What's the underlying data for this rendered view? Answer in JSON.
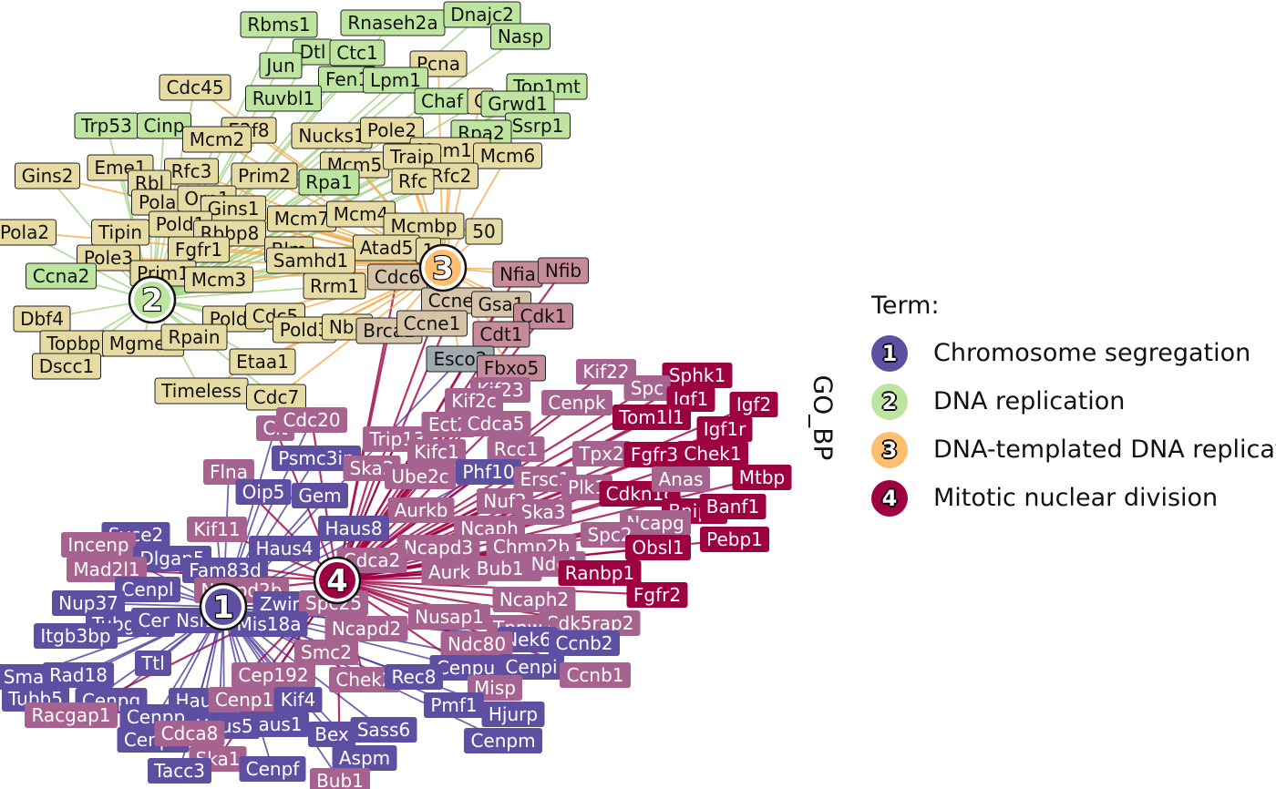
{
  "axis_title": "GO_BP",
  "legend": {
    "title": "Term:",
    "items": [
      {
        "num": "1",
        "label": "Chromosome segregation",
        "color": "#5E4FA2"
      },
      {
        "num": "2",
        "label": "DNA replication",
        "color": "#BEE5A0"
      },
      {
        "num": "3",
        "label": "DNA-templated DNA replication",
        "color": "#FDBF6F"
      },
      {
        "num": "4",
        "label": "Mitotic nuclear division",
        "color": "#9E0142"
      }
    ]
  },
  "colors": {
    "term1": "#5E4FA2",
    "term2": "#BEE5A0",
    "term3": "#FDBF6F",
    "term4": "#9E0142",
    "tan": "#E6DCA3",
    "green_gene": "#BEE5A0",
    "mix_grey": "#A0A8B0",
    "mauve": "#A6638F",
    "rose": "#C68B99",
    "edge_purple": "#4B3B9A",
    "edge_red": "#9E0142",
    "edge_green": "#A8D58A",
    "edge_orange": "#F8A94C"
  },
  "terms": [
    {
      "num": "1",
      "color": "#5E4FA2"
    },
    {
      "num": "2",
      "color": "#BEE5A0"
    },
    {
      "num": "3",
      "color": "#FDBF6F"
    },
    {
      "num": "4",
      "color": "#9E0142"
    }
  ],
  "genes": [
    {
      "label": "Rbms1",
      "fill": "#BEE5A0"
    },
    {
      "label": "Rnaseh2a",
      "fill": "#BEE5A0"
    },
    {
      "label": "Dnajc2",
      "fill": "#BEE5A0"
    },
    {
      "label": "Nasp",
      "fill": "#BEE5A0"
    },
    {
      "label": "Dtl",
      "fill": "#BEE5A0"
    },
    {
      "label": "Ctc1",
      "fill": "#BEE5A0"
    },
    {
      "label": "Jun",
      "fill": "#BEE5A0"
    },
    {
      "label": "Pcna",
      "fill": "#E6DCA3"
    },
    {
      "label": "Cdc45",
      "fill": "#E6DCA3"
    },
    {
      "label": "Fen1",
      "fill": "#BEE5A0"
    },
    {
      "label": "Lpm1",
      "fill": "#BEE5A0"
    },
    {
      "label": "Ruvbl1",
      "fill": "#BEE5A0"
    },
    {
      "label": "Top1mt",
      "fill": "#BEE5A0"
    },
    {
      "label": "Chaf",
      "fill": "#BEE5A0"
    },
    {
      "label": "C",
      "fill": "#E6DCA3"
    },
    {
      "label": "Grwd1",
      "fill": "#BEE5A0"
    },
    {
      "label": "Trp53",
      "fill": "#BEE5A0"
    },
    {
      "label": "Cinp",
      "fill": "#BEE5A0"
    },
    {
      "label": "E2f8",
      "fill": "#E6DCA3"
    },
    {
      "label": "Ssrp1",
      "fill": "#BEE5A0"
    },
    {
      "label": "Mcm2",
      "fill": "#E6DCA3"
    },
    {
      "label": "Nucks1",
      "fill": "#E6DCA3"
    },
    {
      "label": "Pole2",
      "fill": "#E6DCA3"
    },
    {
      "label": "Rpa2",
      "fill": "#BEE5A0"
    },
    {
      "label": "Mcm10",
      "fill": "#E6DCA3"
    },
    {
      "label": "Mcm6",
      "fill": "#E6DCA3"
    },
    {
      "label": "Gins2",
      "fill": "#E6DCA3"
    },
    {
      "label": "Eme1",
      "fill": "#E6DCA3"
    },
    {
      "label": "Rfc3",
      "fill": "#E6DCA3"
    },
    {
      "label": "Prim2",
      "fill": "#E6DCA3"
    },
    {
      "label": "Mcm5",
      "fill": "#E6DCA3"
    },
    {
      "label": "Traip",
      "fill": "#E6DCA3"
    },
    {
      "label": "Rfc2",
      "fill": "#E6DCA3"
    },
    {
      "label": "Rfc",
      "fill": "#E6DCA3"
    },
    {
      "label": "Rpa1",
      "fill": "#BEE5A0"
    },
    {
      "label": "Rbl",
      "fill": "#E6DCA3"
    },
    {
      "label": "Pola1",
      "fill": "#E6DCA3"
    },
    {
      "label": "Orp1",
      "fill": "#E6DCA3"
    },
    {
      "label": "Gins1",
      "fill": "#E6DCA3"
    },
    {
      "label": "Mcm7",
      "fill": "#E6DCA3"
    },
    {
      "label": "Mcm4",
      "fill": "#E6DCA3"
    },
    {
      "label": "Mcmbp",
      "fill": "#E6DCA3"
    },
    {
      "label": "Pola2",
      "fill": "#E6DCA3"
    },
    {
      "label": "Tipin",
      "fill": "#E6DCA3"
    },
    {
      "label": "Pold1",
      "fill": "#E6DCA3"
    },
    {
      "label": "Rbbp8",
      "fill": "#E6DCA3"
    },
    {
      "label": "50",
      "fill": "#E6DCA3"
    },
    {
      "label": "Pole3",
      "fill": "#E6DCA3"
    },
    {
      "label": "Fgfr1",
      "fill": "#E6DCA3"
    },
    {
      "label": "Blm",
      "fill": "#E6DCA3"
    },
    {
      "label": "Atad5",
      "fill": "#E6DCA3"
    },
    {
      "label": "1",
      "fill": "#E6DCA3"
    },
    {
      "label": "Ccna2",
      "fill": "#BEE5A0"
    },
    {
      "label": "Prim1",
      "fill": "#E6DCA3"
    },
    {
      "label": "Mcm3",
      "fill": "#E6DCA3"
    },
    {
      "label": "Samhd1",
      "fill": "#E6DCA3"
    },
    {
      "label": "Cdc6",
      "fill": "#D5C4A8"
    },
    {
      "label": "Nfia",
      "fill": "#C68B99"
    },
    {
      "label": "Nfib",
      "fill": "#C68B99"
    },
    {
      "label": "Rrm1",
      "fill": "#E6DCA3"
    },
    {
      "label": "Ccne2",
      "fill": "#D5C4A8"
    },
    {
      "label": "Gsa1",
      "fill": "#D5C4A8"
    },
    {
      "label": "Dbf4",
      "fill": "#E6DCA3"
    },
    {
      "label": "Pold2",
      "fill": "#E6DCA3"
    },
    {
      "label": "Cdc5",
      "fill": "#E6DCA3"
    },
    {
      "label": "Pold3",
      "fill": "#E6DCA3"
    },
    {
      "label": "Nbn",
      "fill": "#E6DCA3"
    },
    {
      "label": "Brca2",
      "fill": "#D5C4A8"
    },
    {
      "label": "Ccne1",
      "fill": "#D5C4A8"
    },
    {
      "label": "Cdk1",
      "fill": "#C68B99"
    },
    {
      "label": "Topbp1",
      "fill": "#E6DCA3"
    },
    {
      "label": "Mgme1",
      "fill": "#E6DCA3"
    },
    {
      "label": "Rpain",
      "fill": "#E6DCA3"
    },
    {
      "label": "Cdt1",
      "fill": "#C68B99"
    },
    {
      "label": "Dscc1",
      "fill": "#E6DCA3"
    },
    {
      "label": "Etaa1",
      "fill": "#E6DCA3"
    },
    {
      "label": "Esco2",
      "fill": "#A0A8B0"
    },
    {
      "label": "Fbxo5",
      "fill": "#C68B99"
    },
    {
      "label": "Timeless",
      "fill": "#E6DCA3"
    },
    {
      "label": "Cdc7",
      "fill": "#E6DCA3"
    },
    {
      "label": "Kif22",
      "fill": "#A6638F"
    },
    {
      "label": "Sphk1",
      "fill": "#9E0142"
    },
    {
      "label": "Kif23",
      "fill": "#A6638F"
    },
    {
      "label": "Spc",
      "fill": "#A6638F"
    },
    {
      "label": "Igf1",
      "fill": "#9E0142"
    },
    {
      "label": "Igf2",
      "fill": "#9E0142"
    },
    {
      "label": "Kif2c",
      "fill": "#A6638F"
    },
    {
      "label": "Cenpk",
      "fill": "#A6638F"
    },
    {
      "label": "Tom1l1",
      "fill": "#9E0142"
    },
    {
      "label": "Igf1r",
      "fill": "#9E0142"
    },
    {
      "label": "Cit",
      "fill": "#A6638F"
    },
    {
      "label": "Cdc20",
      "fill": "#A6638F"
    },
    {
      "label": "Trip13",
      "fill": "#A6638F"
    },
    {
      "label": "Ect2",
      "fill": "#A6638F"
    },
    {
      "label": "Cdca5",
      "fill": "#A6638F"
    },
    {
      "label": "Chek1",
      "fill": "#9E0142"
    },
    {
      "label": "Psmc3ip",
      "fill": "#5E4FA2"
    },
    {
      "label": "Kifc1",
      "fill": "#A6638F"
    },
    {
      "label": "Rcc1",
      "fill": "#A6638F"
    },
    {
      "label": "Tpx2",
      "fill": "#A6638F"
    },
    {
      "label": "Fgfr3",
      "fill": "#9E0142"
    },
    {
      "label": "Mtbp",
      "fill": "#9E0142"
    },
    {
      "label": "Flna",
      "fill": "#A6638F"
    },
    {
      "label": "Ska2",
      "fill": "#A6638F"
    },
    {
      "label": "Ube2c",
      "fill": "#A6638F"
    },
    {
      "label": "Phf10",
      "fill": "#5E4FA2"
    },
    {
      "label": "Ersc1",
      "fill": "#A6638F"
    },
    {
      "label": "Plk1",
      "fill": "#A6638F"
    },
    {
      "label": "Cdkn1c",
      "fill": "#9E0142"
    },
    {
      "label": "Anas",
      "fill": "#A6638F"
    },
    {
      "label": "Oip5",
      "fill": "#5E4FA2"
    },
    {
      "label": "Gem",
      "fill": "#5E4FA2"
    },
    {
      "label": "Nuf2",
      "fill": "#A6638F"
    },
    {
      "label": "Ska3",
      "fill": "#A6638F"
    },
    {
      "label": "Bnip2",
      "fill": "#9E0142"
    },
    {
      "label": "Banf1",
      "fill": "#9E0142"
    },
    {
      "label": "Aurkb",
      "fill": "#A6638F"
    },
    {
      "label": "Kif11",
      "fill": "#A6638F"
    },
    {
      "label": "Haus8",
      "fill": "#5E4FA2"
    },
    {
      "label": "Ncaph",
      "fill": "#A6638F"
    },
    {
      "label": "Ncapg",
      "fill": "#A6638F"
    },
    {
      "label": "Spc2",
      "fill": "#A6638F"
    },
    {
      "label": "Pebp1",
      "fill": "#9E0142"
    },
    {
      "label": "Syce2",
      "fill": "#5E4FA2"
    },
    {
      "label": "Incenp",
      "fill": "#A6638F"
    },
    {
      "label": "Haus4",
      "fill": "#5E4FA2"
    },
    {
      "label": "Ncapd3",
      "fill": "#A6638F"
    },
    {
      "label": "Chmp2b",
      "fill": "#A6638F"
    },
    {
      "label": "Obsl1",
      "fill": "#9E0142"
    },
    {
      "label": "Dlgap5",
      "fill": "#5E4FA2"
    },
    {
      "label": "Cdca2",
      "fill": "#A6638F"
    },
    {
      "label": "Mad2l1",
      "fill": "#A6638F"
    },
    {
      "label": "Fam83d",
      "fill": "#5E4FA2"
    },
    {
      "label": "Aurka",
      "fill": "#A6638F"
    },
    {
      "label": "Bub1b",
      "fill": "#A6638F"
    },
    {
      "label": "Nde1",
      "fill": "#A6638F"
    },
    {
      "label": "Ranbp1",
      "fill": "#9E0142"
    },
    {
      "label": "Cenpl",
      "fill": "#5E4FA2"
    },
    {
      "label": "Ncapd2b",
      "fill": "#A6638F"
    },
    {
      "label": "Fgfr2",
      "fill": "#9E0142"
    },
    {
      "label": "Nup37",
      "fill": "#5E4FA2"
    },
    {
      "label": "Zwint",
      "fill": "#5E4FA2"
    },
    {
      "label": "Spc25",
      "fill": "#A6638F"
    },
    {
      "label": "Ncaph2",
      "fill": "#A6638F"
    },
    {
      "label": "Tubgcp2",
      "fill": "#5E4FA2"
    },
    {
      "label": "Cenph3",
      "fill": "#5E4FA2"
    },
    {
      "label": "Nsl1",
      "fill": "#5E4FA2"
    },
    {
      "label": "Nusap1",
      "fill": "#A6638F"
    },
    {
      "label": "Cdk5rap2",
      "fill": "#A6638F"
    },
    {
      "label": "Itgb3bp",
      "fill": "#5E4FA2"
    },
    {
      "label": "Mis18a",
      "fill": "#5E4FA2"
    },
    {
      "label": "Ncapd2",
      "fill": "#A6638F"
    },
    {
      "label": "Tpnw",
      "fill": "#A6638F"
    },
    {
      "label": "Nek6",
      "fill": "#5E4FA2"
    },
    {
      "label": "Ccnb2",
      "fill": "#5E4FA2"
    },
    {
      "label": "Ndc80",
      "fill": "#A6638F"
    },
    {
      "label": "Smc2",
      "fill": "#A6638F"
    },
    {
      "label": "Ttl",
      "fill": "#5E4FA2"
    },
    {
      "label": "Cenpu",
      "fill": "#5E4FA2"
    },
    {
      "label": "Cenpi",
      "fill": "#5E4FA2"
    },
    {
      "label": "Rad18",
      "fill": "#5E4FA2"
    },
    {
      "label": "Sma",
      "fill": "#5E4FA2"
    },
    {
      "label": "Cep192",
      "fill": "#A6638F"
    },
    {
      "label": "Chek2",
      "fill": "#A6638F"
    },
    {
      "label": "Rec8",
      "fill": "#5E4FA2"
    },
    {
      "label": "Misp",
      "fill": "#A6638F"
    },
    {
      "label": "Ccnb1",
      "fill": "#A6638F"
    },
    {
      "label": "Tubb5",
      "fill": "#5E4FA2"
    },
    {
      "label": "Cenpq",
      "fill": "#5E4FA2"
    },
    {
      "label": "Haus6",
      "fill": "#5E4FA2"
    },
    {
      "label": "Cenp1",
      "fill": "#A6638F"
    },
    {
      "label": "Kif4",
      "fill": "#5E4FA2"
    },
    {
      "label": "Pmf1",
      "fill": "#5E4FA2"
    },
    {
      "label": "Hjurp",
      "fill": "#5E4FA2"
    },
    {
      "label": "Racgap1",
      "fill": "#A6638F"
    },
    {
      "label": "Cenpp",
      "fill": "#5E4FA2"
    },
    {
      "label": "Haus1",
      "fill": "#5E4FA2"
    },
    {
      "label": "Haus5",
      "fill": "#5E4FA2"
    },
    {
      "label": "Bex",
      "fill": "#5E4FA2"
    },
    {
      "label": "Sass6",
      "fill": "#5E4FA2"
    },
    {
      "label": "Cenpm",
      "fill": "#5E4FA2"
    },
    {
      "label": "Cenpn",
      "fill": "#5E4FA2"
    },
    {
      "label": "Cdca8",
      "fill": "#A6638F"
    },
    {
      "label": "Aspm",
      "fill": "#5E4FA2"
    },
    {
      "label": "Ska1",
      "fill": "#A6638F"
    },
    {
      "label": "Tacc3",
      "fill": "#5E4FA2"
    },
    {
      "label": "Cenpf",
      "fill": "#5E4FA2"
    },
    {
      "label": "Bub1",
      "fill": "#A6638F"
    }
  ]
}
